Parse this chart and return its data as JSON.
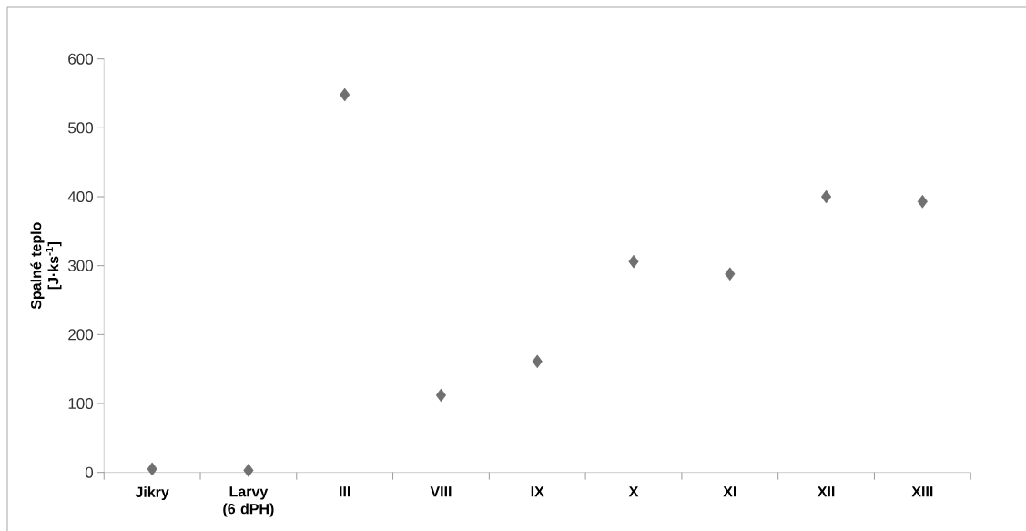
{
  "chart_data": {
    "type": "scatter",
    "ylabel": "Spalné teplo [J·ks$^{-1}$]",
    "categories": [
      "Jikry",
      "Larvy (6 dPH)",
      "III",
      "VIII",
      "IX",
      "X",
      "XI",
      "XII",
      "XIII"
    ],
    "values": [
      5,
      3,
      548,
      112,
      161,
      306,
      288,
      400,
      393
    ],
    "color": "#707070",
    "marker": "diamond",
    "ylim": [
      0,
      600
    ],
    "yticks": [
      0,
      100,
      200,
      300,
      400,
      500,
      600
    ]
  }
}
